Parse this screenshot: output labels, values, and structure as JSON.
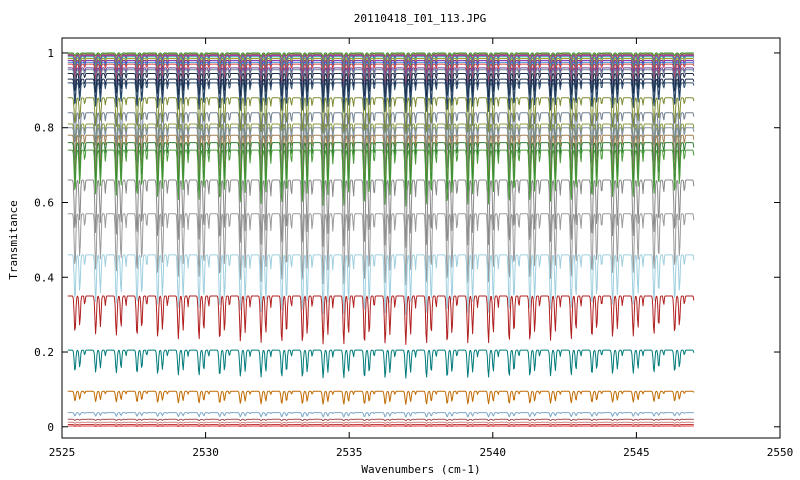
{
  "chart_data": {
    "type": "line",
    "title": "20110418_I01_113.JPG",
    "xlabel": "Wavenumbers (cm-1)",
    "ylabel": "Transmitance",
    "xlim": [
      2525,
      2550
    ],
    "ylim": [
      -0.03,
      1.04
    ],
    "x_ticks": [
      "2525",
      "2530",
      "2535",
      "2540",
      "2545",
      "2550"
    ],
    "y_ticks": [
      "0",
      "0.2",
      "0.4",
      "0.6",
      "0.8",
      "1"
    ],
    "grid": false,
    "legend": "none",
    "x_range_of_data": [
      2525.2,
      2547.0
    ],
    "line_period_cm1": 0.72,
    "series": [
      {
        "baseline": 1.0,
        "depth": 0.01,
        "color": "#1f8f2f"
      },
      {
        "baseline": 0.997,
        "depth": 0.015,
        "color": "#e08020"
      },
      {
        "baseline": 0.995,
        "depth": 0.02,
        "color": "#4060c0"
      },
      {
        "baseline": 0.993,
        "depth": 0.025,
        "color": "#c03090"
      },
      {
        "baseline": 0.99,
        "depth": 0.03,
        "color": "#30a0a0"
      },
      {
        "baseline": 0.985,
        "depth": 0.035,
        "color": "#a0a020"
      },
      {
        "baseline": 0.98,
        "depth": 0.04,
        "color": "#8020a0"
      },
      {
        "baseline": 0.975,
        "depth": 0.045,
        "color": "#3080d0"
      },
      {
        "baseline": 0.97,
        "depth": 0.05,
        "color": "#d04040"
      },
      {
        "baseline": 0.96,
        "depth": 0.055,
        "color": "#6a3d9a"
      },
      {
        "baseline": 0.955,
        "depth": 0.06,
        "color": "#708090"
      },
      {
        "baseline": 0.945,
        "depth": 0.065,
        "color": "#1a2a4a"
      },
      {
        "baseline": 0.93,
        "depth": 0.075,
        "color": "#1a2a4a"
      },
      {
        "baseline": 0.92,
        "depth": 0.08,
        "color": "#2f4f6f"
      },
      {
        "baseline": 0.88,
        "depth": 0.095,
        "color": "#7a8a30"
      },
      {
        "baseline": 0.84,
        "depth": 0.11,
        "color": "#708090"
      },
      {
        "baseline": 0.81,
        "depth": 0.12,
        "color": "#8a9a40"
      },
      {
        "baseline": 0.8,
        "depth": 0.12,
        "color": "#8090a0"
      },
      {
        "baseline": 0.78,
        "depth": 0.13,
        "color": "#a08050"
      },
      {
        "baseline": 0.76,
        "depth": 0.14,
        "color": "#2e7d32"
      },
      {
        "baseline": 0.74,
        "depth": 0.15,
        "color": "#4a9a3a"
      },
      {
        "baseline": 0.66,
        "depth": 0.18,
        "color": "#888888"
      },
      {
        "baseline": 0.57,
        "depth": 0.19,
        "color": "#9a9a9a"
      },
      {
        "baseline": 0.46,
        "depth": 0.16,
        "color": "#9fcfdf"
      },
      {
        "baseline": 0.35,
        "depth": 0.13,
        "color": "#b02020"
      },
      {
        "baseline": 0.205,
        "depth": 0.075,
        "color": "#007a7a"
      },
      {
        "baseline": 0.095,
        "depth": 0.035,
        "color": "#c06a00"
      },
      {
        "baseline": 0.038,
        "depth": 0.012,
        "color": "#7fa7c7"
      },
      {
        "baseline": 0.02,
        "depth": 0.004,
        "color": "#a05050"
      },
      {
        "baseline": 0.012,
        "depth": 0.003,
        "color": "#d08080"
      },
      {
        "baseline": 0.006,
        "depth": 0.002,
        "color": "#c04040"
      },
      {
        "baseline": 0.002,
        "depth": 0.001,
        "color": "#e04040"
      }
    ]
  }
}
